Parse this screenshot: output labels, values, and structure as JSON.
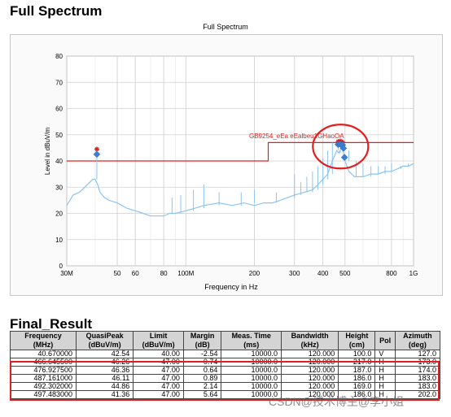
{
  "page": {
    "title": "Full Spectrum",
    "final_title": "Final_Result",
    "watermark": "CSDN@技术博主@李小姐"
  },
  "chart_data": {
    "type": "line",
    "title": "Full Spectrum",
    "xlabel": "Frequency in Hz",
    "ylabel": "Level in dBuV/m",
    "xscale": "log",
    "xlim": [
      30,
      1000
    ],
    "ylim": [
      0,
      80
    ],
    "yticks": [
      0,
      10,
      20,
      30,
      40,
      50,
      60,
      70,
      80
    ],
    "xticks": [
      {
        "v": 30,
        "label": "30M"
      },
      {
        "v": 50,
        "label": "50"
      },
      {
        "v": 60,
        "label": "60"
      },
      {
        "v": 80,
        "label": "80"
      },
      {
        "v": 100,
        "label": "100M"
      },
      {
        "v": 200,
        "label": "200"
      },
      {
        "v": 300,
        "label": "300"
      },
      {
        "v": 400,
        "label": "400"
      },
      {
        "v": 500,
        "label": "500"
      },
      {
        "v": 800,
        "label": "800"
      },
      {
        "v": 1000,
        "label": "1G"
      }
    ],
    "grid": true,
    "limit_label": "GB9254_eEa eEalbeu1GHaoOA",
    "limit_line": [
      [
        30,
        40
      ],
      [
        230,
        40
      ],
      [
        230,
        47
      ],
      [
        1000,
        47
      ]
    ],
    "spectrum": [
      [
        30,
        23
      ],
      [
        32,
        27
      ],
      [
        34,
        28
      ],
      [
        36,
        30
      ],
      [
        38,
        32
      ],
      [
        39,
        33
      ],
      [
        40,
        33
      ],
      [
        41,
        31
      ],
      [
        42,
        28
      ],
      [
        44,
        26
      ],
      [
        46,
        25
      ],
      [
        50,
        24
      ],
      [
        55,
        22
      ],
      [
        60,
        21
      ],
      [
        65,
        20
      ],
      [
        70,
        19
      ],
      [
        75,
        19
      ],
      [
        80,
        19
      ],
      [
        85,
        20
      ],
      [
        90,
        20
      ],
      [
        100,
        21
      ],
      [
        110,
        22
      ],
      [
        120,
        23
      ],
      [
        140,
        24
      ],
      [
        160,
        23
      ],
      [
        180,
        24
      ],
      [
        200,
        23
      ],
      [
        220,
        24
      ],
      [
        240,
        24
      ],
      [
        260,
        25
      ],
      [
        280,
        26
      ],
      [
        300,
        27
      ],
      [
        330,
        28
      ],
      [
        360,
        29
      ],
      [
        380,
        31
      ],
      [
        400,
        33
      ],
      [
        420,
        35
      ],
      [
        440,
        40
      ],
      [
        460,
        44
      ],
      [
        470,
        43
      ],
      [
        480,
        45
      ],
      [
        490,
        44
      ],
      [
        500,
        40
      ],
      [
        520,
        36
      ],
      [
        550,
        34
      ],
      [
        600,
        34
      ],
      [
        650,
        35
      ],
      [
        700,
        35
      ],
      [
        750,
        36
      ],
      [
        800,
        36
      ],
      [
        850,
        37
      ],
      [
        900,
        38
      ],
      [
        950,
        38
      ],
      [
        1000,
        39
      ]
    ],
    "spikes": [
      [
        40.67,
        42
      ],
      [
        87,
        26
      ],
      [
        95,
        27
      ],
      [
        108,
        29
      ],
      [
        120,
        31
      ],
      [
        140,
        28
      ],
      [
        175,
        28
      ],
      [
        200,
        29
      ],
      [
        250,
        28
      ],
      [
        300,
        35
      ],
      [
        320,
        32
      ],
      [
        340,
        34
      ],
      [
        360,
        36
      ],
      [
        380,
        38
      ],
      [
        400,
        41
      ],
      [
        420,
        44
      ],
      [
        440,
        47
      ],
      [
        466.6,
        48
      ],
      [
        476.9,
        48
      ],
      [
        487.2,
        47
      ],
      [
        492.3,
        47
      ],
      [
        520,
        44
      ],
      [
        560,
        40
      ],
      [
        600,
        39
      ],
      [
        650,
        38
      ],
      [
        700,
        38
      ],
      [
        750,
        38
      ],
      [
        800,
        39
      ],
      [
        880,
        38
      ],
      [
        950,
        39
      ]
    ],
    "qp_markers": [
      [
        40.67,
        42.54
      ],
      [
        466.65,
        46.26
      ],
      [
        476.93,
        46.36
      ],
      [
        487.16,
        46.11
      ],
      [
        492.3,
        44.86
      ],
      [
        497.48,
        41.36
      ]
    ],
    "pk_markers": [
      [
        40.67,
        44.5
      ],
      [
        466.65,
        47.4
      ],
      [
        476.93,
        47.6
      ],
      [
        487.16,
        47.2
      ]
    ],
    "annotation": {
      "type": "circle",
      "color": "#e02020"
    }
  },
  "table": {
    "headers": [
      [
        "Frequency",
        "(MHz)"
      ],
      [
        "QuasiPeak",
        "(dBuV/m)"
      ],
      [
        "Limit",
        "(dBuV/m)"
      ],
      [
        "Margin",
        "(dB)"
      ],
      [
        "Meas. Time",
        "(ms)"
      ],
      [
        "Bandwidth",
        "(kHz)"
      ],
      [
        "Height",
        "(cm)"
      ],
      [
        "Pol",
        ""
      ],
      [
        "Azimuth",
        "(deg)"
      ]
    ],
    "rows": [
      [
        "40.670000",
        "42.54",
        "40.00",
        "-2.54",
        "10000.0",
        "120.000",
        "100.0",
        "V",
        "127.0"
      ],
      [
        "466.645500",
        "46.26",
        "47.00",
        "0.74",
        "10000.0",
        "120.000",
        "217.0",
        "H",
        "173.0"
      ],
      [
        "476.927500",
        "46.36",
        "47.00",
        "0.64",
        "10000.0",
        "120.000",
        "187.0",
        "H",
        "174.0"
      ],
      [
        "487.161000",
        "46.11",
        "47.00",
        "0.89",
        "10000.0",
        "120.000",
        "186.0",
        "H",
        "183.0"
      ],
      [
        "492.302000",
        "44.86",
        "47.00",
        "2.14",
        "10000.0",
        "120.000",
        "169.0",
        "H",
        "183.0"
      ],
      [
        "497.483000",
        "41.36",
        "47.00",
        "5.64",
        "10000.0",
        "120.000",
        "186.0",
        "H",
        "202.0"
      ]
    ]
  }
}
